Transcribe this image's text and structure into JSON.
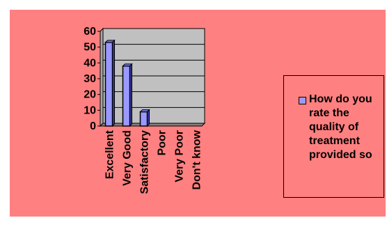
{
  "chart_data": {
    "type": "bar",
    "categories": [
      "Excellent",
      "Very Good",
      "Satisfactory",
      "Poor",
      "Very Poor",
      "Don't know"
    ],
    "series": [
      {
        "name": "How do you rate the quality of treatment provided so",
        "values": [
          53,
          38,
          9,
          0,
          0,
          0
        ]
      }
    ],
    "ylim": [
      0,
      60
    ],
    "yticks": [
      0,
      10,
      20,
      30,
      40,
      50,
      60
    ],
    "grid": true,
    "legend_position": "right",
    "colors": {
      "bar": "#9999ff",
      "plot_bg": "#c0c0c0",
      "chart_bg": "#ff8080"
    }
  },
  "legend": {
    "label_lines": "How do you\nrate the\nquality of\ntreatment\nprovided so"
  }
}
